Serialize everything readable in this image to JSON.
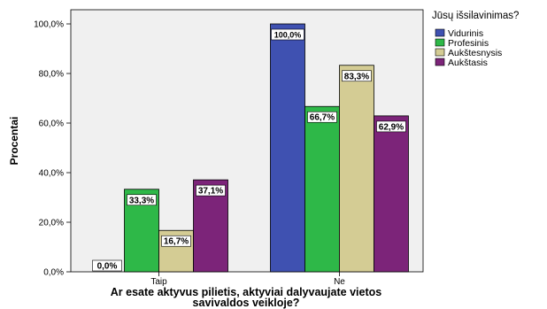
{
  "chart_data": {
    "type": "bar",
    "title": "",
    "xlabel": "Ar esate aktyvus pilietis, aktyviai dalyvaujate vietos savivaldos veikloje?",
    "xlabel_lines": [
      "Ar esate aktyvus pilietis, aktyviai dalyvaujate vietos",
      "savivaldos veikloje?"
    ],
    "ylabel": "Procentai",
    "ylim": [
      0,
      100
    ],
    "yticks": [
      0,
      20,
      40,
      60,
      80,
      100
    ],
    "ytick_labels": [
      "0,0%",
      "20,0%",
      "40,0%",
      "60,0%",
      "80,0%",
      "100,0%"
    ],
    "categories": [
      "Taip",
      "Ne"
    ],
    "legend_title": "Jūsų išsilavinimas?",
    "legend_position": "top-right",
    "grid": false,
    "series": [
      {
        "name": "Vidurinis",
        "color": "#3f51b1",
        "values": [
          0.0,
          100.0
        ],
        "labels": [
          "0,0%",
          "100,0%"
        ]
      },
      {
        "name": "Profesinis",
        "color": "#2eb848",
        "values": [
          33.3,
          66.7
        ],
        "labels": [
          "33,3%",
          "66,7%"
        ]
      },
      {
        "name": "Aukštesnysis",
        "color": "#d4cc94",
        "values": [
          16.7,
          83.3
        ],
        "labels": [
          "16,7%",
          "83,3%"
        ]
      },
      {
        "name": "Aukštasis",
        "color": "#7c2479",
        "values": [
          37.1,
          62.9
        ],
        "labels": [
          "37,1%",
          "62,9%"
        ]
      }
    ]
  }
}
